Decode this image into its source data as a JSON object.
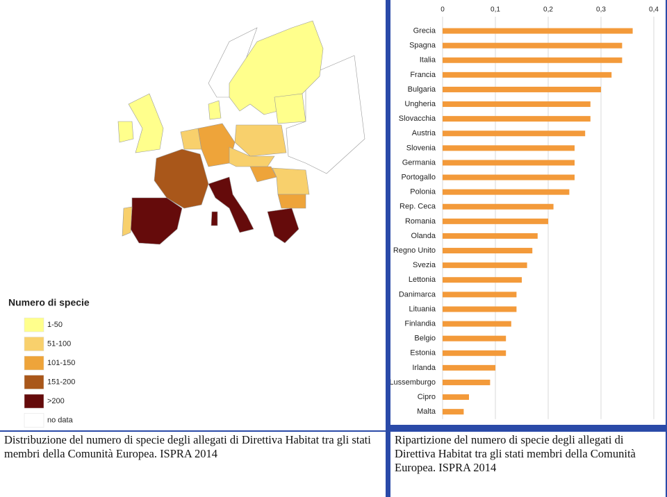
{
  "chart_data": [
    {
      "type": "map",
      "legend_title": "Numero di specie",
      "legend": [
        {
          "label": "1-50",
          "color": "#ffff8c"
        },
        {
          "label": "51-100",
          "color": "#f8d06c"
        },
        {
          "label": "101-150",
          "color": "#eea43a"
        },
        {
          "label": "151-200",
          "color": "#a9571a"
        },
        {
          "label": ">200",
          "color": "#650b0b"
        },
        {
          "label": "no data",
          "color": "#ffffff"
        }
      ],
      "caption": "Distribuzione del numero di specie degli  allegati di Direttiva Habitat tra gli stati membri della Comunità Europea.  ISPRA 2014"
    },
    {
      "type": "bar",
      "orientation": "horizontal",
      "color": "#f39a3a",
      "grid": true,
      "categories": [
        "Grecia",
        "Spagna",
        "Italia",
        "Francia",
        "Bulgaria",
        "Ungheria",
        "Slovacchia",
        "Austria",
        "Slovenia",
        "Germania",
        "Portogallo",
        "Polonia",
        "Rep. Ceca",
        "Romania",
        "Olanda",
        "Regno Unito",
        "Svezia",
        "Lettonia",
        "Danimarca",
        "Lituania",
        "Finlandia",
        "Belgio",
        "Estonia",
        "Irlanda",
        "Lussemburgo",
        "Cipro",
        "Malta"
      ],
      "values": [
        0.36,
        0.34,
        0.34,
        0.32,
        0.3,
        0.28,
        0.28,
        0.27,
        0.25,
        0.25,
        0.25,
        0.24,
        0.21,
        0.2,
        0.18,
        0.17,
        0.16,
        0.15,
        0.14,
        0.14,
        0.13,
        0.12,
        0.12,
        0.1,
        0.09,
        0.05,
        0.04
      ],
      "xlim": [
        0,
        0.4
      ],
      "xticks": [
        0,
        {
          "value": 0.1,
          "label": "0,1"
        },
        {
          "value": 0.2,
          "label": "0,2"
        },
        {
          "value": 0.3,
          "label": "0,3"
        },
        {
          "value": 0.4,
          "label": "0,4"
        }
      ],
      "caption": "Ripartizione del numero di specie degli allegati di Direttiva Habitat tra gli stati membri della Comunità Europea.  ISPRA 2014"
    }
  ]
}
